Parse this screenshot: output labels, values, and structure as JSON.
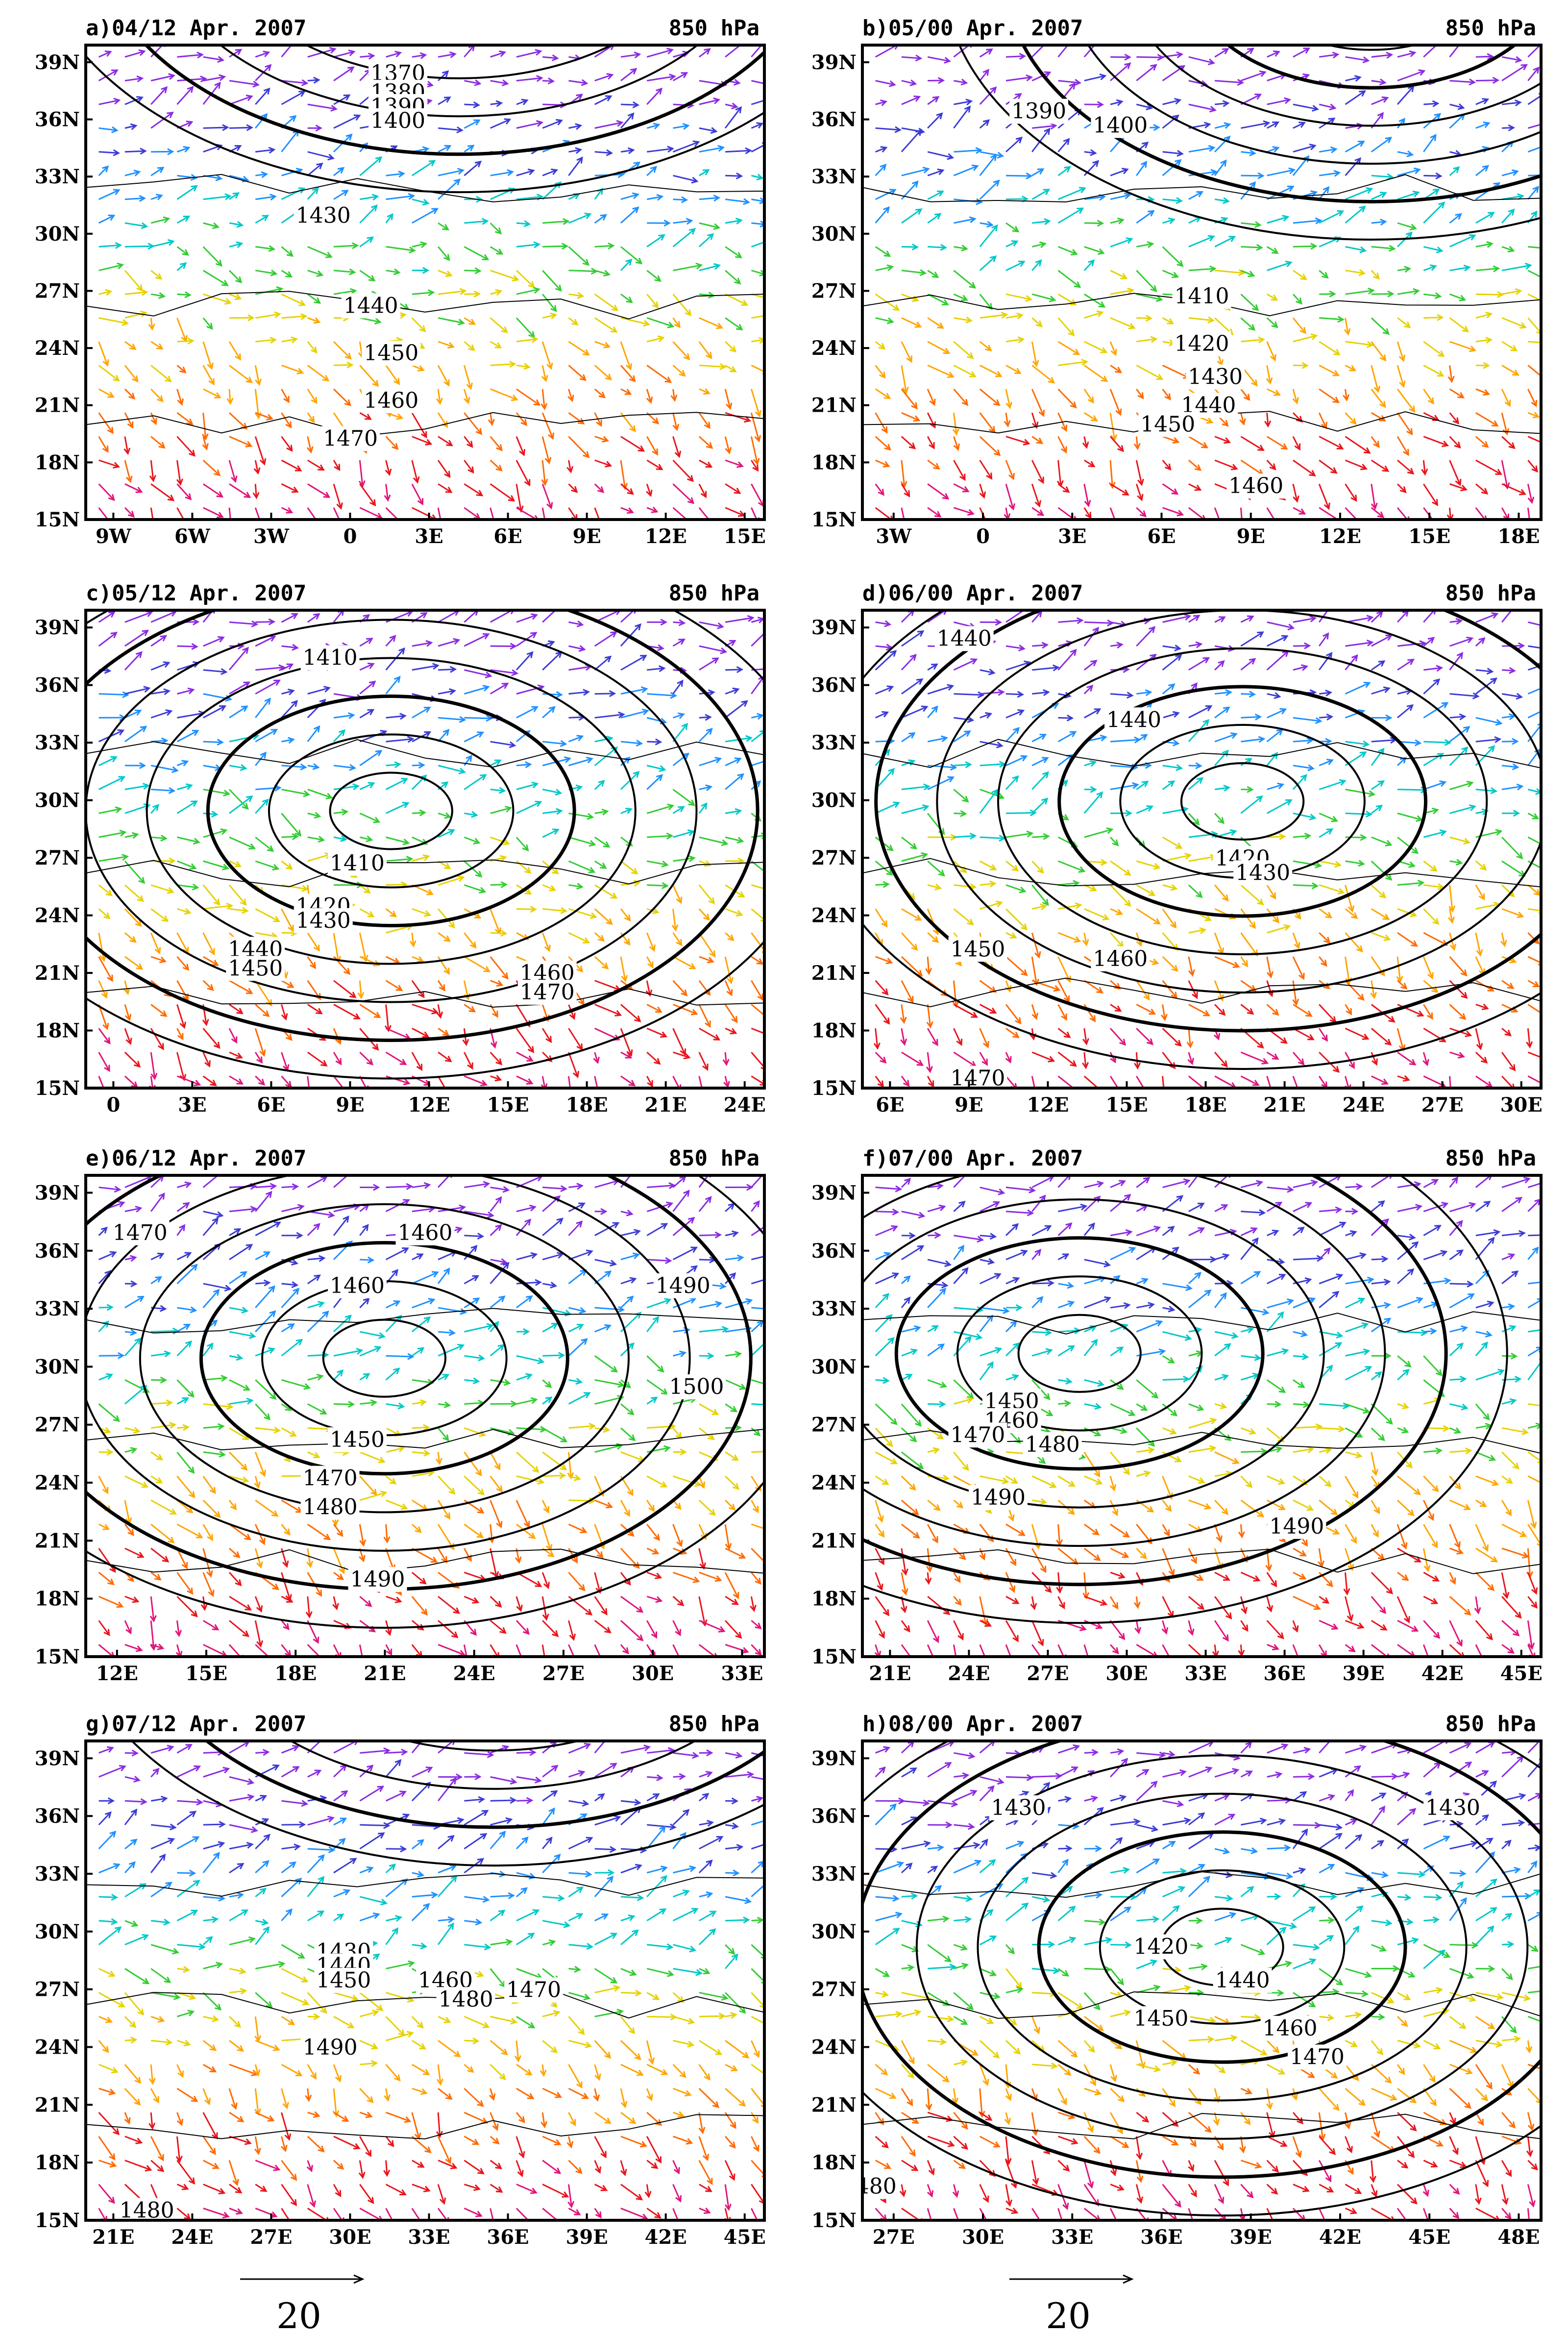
{
  "chart_data": [
    {
      "type": "vector-contour",
      "title": "a)04/12 Apr. 2007",
      "level": "850 hPa",
      "lat_ticks": [
        "39N",
        "36N",
        "33N",
        "30N",
        "27N",
        "24N",
        "21N",
        "18N",
        "15N"
      ],
      "lon_ticks": [
        "9W",
        "6W",
        "3W",
        "0",
        "3E",
        "6E",
        "9E",
        "12E",
        "15E"
      ],
      "contour_labels": [
        "1370",
        "1380",
        "1390",
        "1400",
        "1430",
        "1440",
        "1450",
        "1460",
        "1470"
      ]
    },
    {
      "type": "vector-contour",
      "title": "b)05/00 Apr. 2007",
      "level": "850 hPa",
      "lat_ticks": [
        "39N",
        "36N",
        "33N",
        "30N",
        "27N",
        "24N",
        "21N",
        "18N",
        "15N"
      ],
      "lon_ticks": [
        "3W",
        "0",
        "3E",
        "6E",
        "9E",
        "12E",
        "15E",
        "18E"
      ],
      "contour_labels": [
        "1390",
        "1400",
        "1410",
        "1420",
        "1430",
        "1440",
        "1450",
        "1460"
      ]
    },
    {
      "type": "vector-contour",
      "title": "c)05/12 Apr. 2007",
      "level": "850 hPa",
      "lat_ticks": [
        "39N",
        "36N",
        "33N",
        "30N",
        "27N",
        "24N",
        "21N",
        "18N",
        "15N"
      ],
      "lon_ticks": [
        "0",
        "3E",
        "6E",
        "9E",
        "12E",
        "15E",
        "18E",
        "21E",
        "24E"
      ],
      "contour_labels": [
        "1410",
        "1410",
        "1420",
        "1430",
        "1440",
        "1450",
        "1460",
        "1470"
      ]
    },
    {
      "type": "vector-contour",
      "title": "d)06/00 Apr. 2007",
      "level": "850 hPa",
      "lat_ticks": [
        "39N",
        "36N",
        "33N",
        "30N",
        "27N",
        "24N",
        "21N",
        "18N",
        "15N"
      ],
      "lon_ticks": [
        "6E",
        "9E",
        "12E",
        "15E",
        "18E",
        "21E",
        "24E",
        "27E",
        "30E"
      ],
      "contour_labels": [
        "1440",
        "1440",
        "1420",
        "1430",
        "1450",
        "1460",
        "1470"
      ]
    },
    {
      "type": "vector-contour",
      "title": "e)06/12 Apr. 2007",
      "level": "850 hPa",
      "lat_ticks": [
        "39N",
        "36N",
        "33N",
        "30N",
        "27N",
        "24N",
        "21N",
        "18N",
        "15N"
      ],
      "lon_ticks": [
        "12E",
        "15E",
        "18E",
        "21E",
        "24E",
        "27E",
        "30E",
        "33E"
      ],
      "contour_labels": [
        "1470",
        "1460",
        "1460",
        "1490",
        "1500",
        "1450",
        "1470",
        "1480",
        "1490"
      ]
    },
    {
      "type": "vector-contour",
      "title": "f)07/00 Apr. 2007",
      "level": "850 hPa",
      "lat_ticks": [
        "39N",
        "36N",
        "33N",
        "30N",
        "27N",
        "24N",
        "21N",
        "18N",
        "15N"
      ],
      "lon_ticks": [
        "21E",
        "24E",
        "27E",
        "30E",
        "33E",
        "36E",
        "39E",
        "42E",
        "45E"
      ],
      "contour_labels": [
        "1450",
        "1460",
        "1470",
        "1480",
        "1490",
        "1490"
      ]
    },
    {
      "type": "vector-contour",
      "title": "g)07/12 Apr. 2007",
      "level": "850 hPa",
      "lat_ticks": [
        "39N",
        "36N",
        "33N",
        "30N",
        "27N",
        "24N",
        "21N",
        "18N",
        "15N"
      ],
      "lon_ticks": [
        "21E",
        "24E",
        "27E",
        "30E",
        "33E",
        "36E",
        "39E",
        "42E",
        "45E"
      ],
      "contour_labels": [
        "1430",
        "1440",
        "1450",
        "1460",
        "1470",
        "1480",
        "1490",
        "1480"
      ]
    },
    {
      "type": "vector-contour",
      "title": "h)08/00 Apr. 2007",
      "level": "850 hPa",
      "lat_ticks": [
        "39N",
        "36N",
        "33N",
        "30N",
        "27N",
        "24N",
        "21N",
        "18N",
        "15N"
      ],
      "lon_ticks": [
        "27E",
        "30E",
        "33E",
        "36E",
        "39E",
        "42E",
        "45E",
        "48E"
      ],
      "contour_labels": [
        "1430",
        "1430",
        "1420",
        "1440",
        "1450",
        "1460",
        "1470",
        "480"
      ]
    }
  ],
  "reference_vector": {
    "label": "20"
  },
  "colors": {
    "c0": "#8a2be2",
    "c1": "#3b3bd6",
    "c2": "#1e90ff",
    "c3": "#00c8c8",
    "c4": "#33cc33",
    "c5": "#e6d200",
    "c6": "#ffa500",
    "c7": "#ff6a00",
    "c8": "#e8151c",
    "c9": "#e0157a"
  }
}
